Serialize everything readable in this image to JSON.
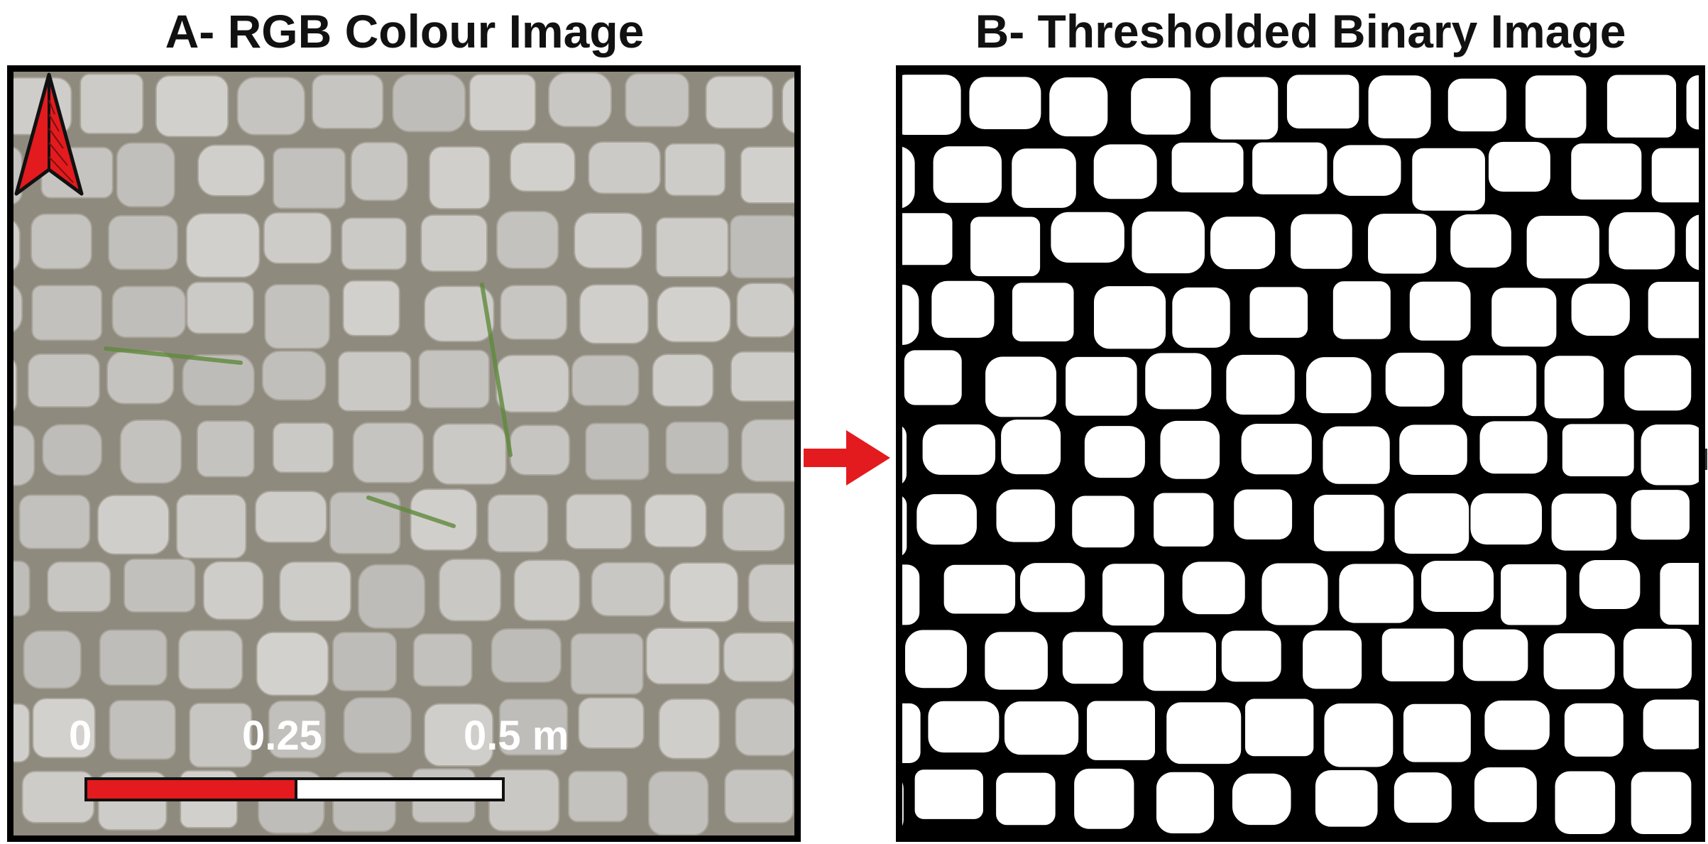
{
  "panels": {
    "a": {
      "title": "A- RGB Colour Image",
      "scale_bar": {
        "label_start": "0",
        "label_mid": "0.25",
        "label_end": "0.5 m",
        "fill_fraction": 0.5,
        "colors": {
          "filled": "#e31b1e",
          "empty": "#ffffff"
        }
      },
      "north_arrow_icon": "north-arrow-icon",
      "surface_colors": {
        "tile": "#c9c6c1",
        "crack": "#8f8a7e",
        "vegetation": "#5f8a3c"
      }
    },
    "b": {
      "title": "B- Thresholded Binary Image",
      "colors": {
        "foreground": "#ffffff",
        "background": "#000000"
      }
    }
  },
  "flow_arrow": {
    "icon": "right-arrow-icon",
    "color": "#e31b1e"
  }
}
